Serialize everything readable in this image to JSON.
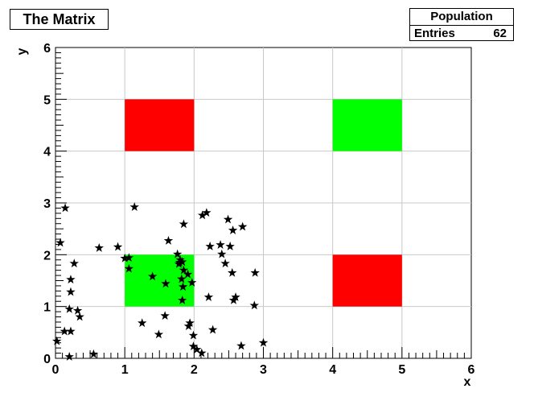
{
  "chart_data": {
    "type": "scatter",
    "title": "The Matrix",
    "xlabel": "x",
    "ylabel": "y",
    "xlim": [
      0,
      6
    ],
    "ylim": [
      0,
      6
    ],
    "x_ticks": [
      "0",
      "1",
      "2",
      "3",
      "4",
      "5",
      "6"
    ],
    "y_ticks": [
      "0",
      "1",
      "2",
      "3",
      "4",
      "5",
      "6"
    ],
    "grid": true,
    "colors": {
      "red": "#ff0000",
      "green": "#00ff00",
      "marker": "#000000",
      "grid": "#c8c8c8"
    },
    "cells": [
      {
        "x": [
          1,
          2
        ],
        "y": [
          4,
          5
        ],
        "color": "red"
      },
      {
        "x": [
          4,
          5
        ],
        "y": [
          4,
          5
        ],
        "color": "green"
      },
      {
        "x": [
          1,
          2
        ],
        "y": [
          1,
          2
        ],
        "color": "green"
      },
      {
        "x": [
          4,
          5
        ],
        "y": [
          1,
          2
        ],
        "color": "red"
      }
    ],
    "stats": {
      "name": "Population",
      "entries_label": "Entries",
      "entries": "62"
    },
    "marker": "star",
    "points": [
      [
        0.02,
        0.33
      ],
      [
        0.13,
        0.52
      ],
      [
        0.22,
        0.52
      ],
      [
        0.2,
        0.03
      ],
      [
        0.55,
        0.08
      ],
      [
        0.35,
        0.8
      ],
      [
        0.32,
        0.92
      ],
      [
        0.2,
        0.95
      ],
      [
        0.22,
        1.28
      ],
      [
        0.22,
        1.52
      ],
      [
        0.27,
        1.83
      ],
      [
        0.07,
        2.23
      ],
      [
        0.14,
        2.9
      ],
      [
        0.63,
        2.13
      ],
      [
        0.9,
        2.15
      ],
      [
        1.0,
        1.93
      ],
      [
        1.06,
        1.94
      ],
      [
        1.06,
        1.73
      ],
      [
        1.14,
        2.92
      ],
      [
        1.25,
        0.68
      ],
      [
        1.4,
        1.58
      ],
      [
        1.49,
        0.46
      ],
      [
        1.58,
        0.82
      ],
      [
        1.59,
        1.44
      ],
      [
        1.63,
        2.27
      ],
      [
        1.76,
        2.01
      ],
      [
        1.78,
        1.82
      ],
      [
        1.8,
        1.9
      ],
      [
        1.79,
        1.85
      ],
      [
        1.83,
        1.86
      ],
      [
        1.82,
        1.53
      ],
      [
        1.85,
        1.7
      ],
      [
        1.84,
        1.38
      ],
      [
        1.83,
        1.12
      ],
      [
        1.85,
        2.59
      ],
      [
        1.91,
        1.62
      ],
      [
        1.97,
        1.46
      ],
      [
        1.92,
        0.62
      ],
      [
        1.94,
        0.68
      ],
      [
        1.99,
        0.44
      ],
      [
        1.99,
        0.23
      ],
      [
        2.04,
        0.17
      ],
      [
        2.11,
        0.1
      ],
      [
        2.12,
        2.76
      ],
      [
        2.18,
        2.81
      ],
      [
        2.21,
        1.18
      ],
      [
        2.23,
        2.16
      ],
      [
        2.27,
        0.55
      ],
      [
        2.38,
        2.19
      ],
      [
        2.4,
        2.01
      ],
      [
        2.45,
        1.83
      ],
      [
        2.49,
        2.68
      ],
      [
        2.52,
        2.16
      ],
      [
        2.56,
        2.47
      ],
      [
        2.55,
        1.65
      ],
      [
        2.57,
        1.12
      ],
      [
        2.6,
        1.18
      ],
      [
        2.7,
        2.54
      ],
      [
        2.68,
        0.24
      ],
      [
        2.87,
        1.02
      ],
      [
        2.88,
        1.65
      ],
      [
        3.0,
        0.3
      ]
    ]
  }
}
